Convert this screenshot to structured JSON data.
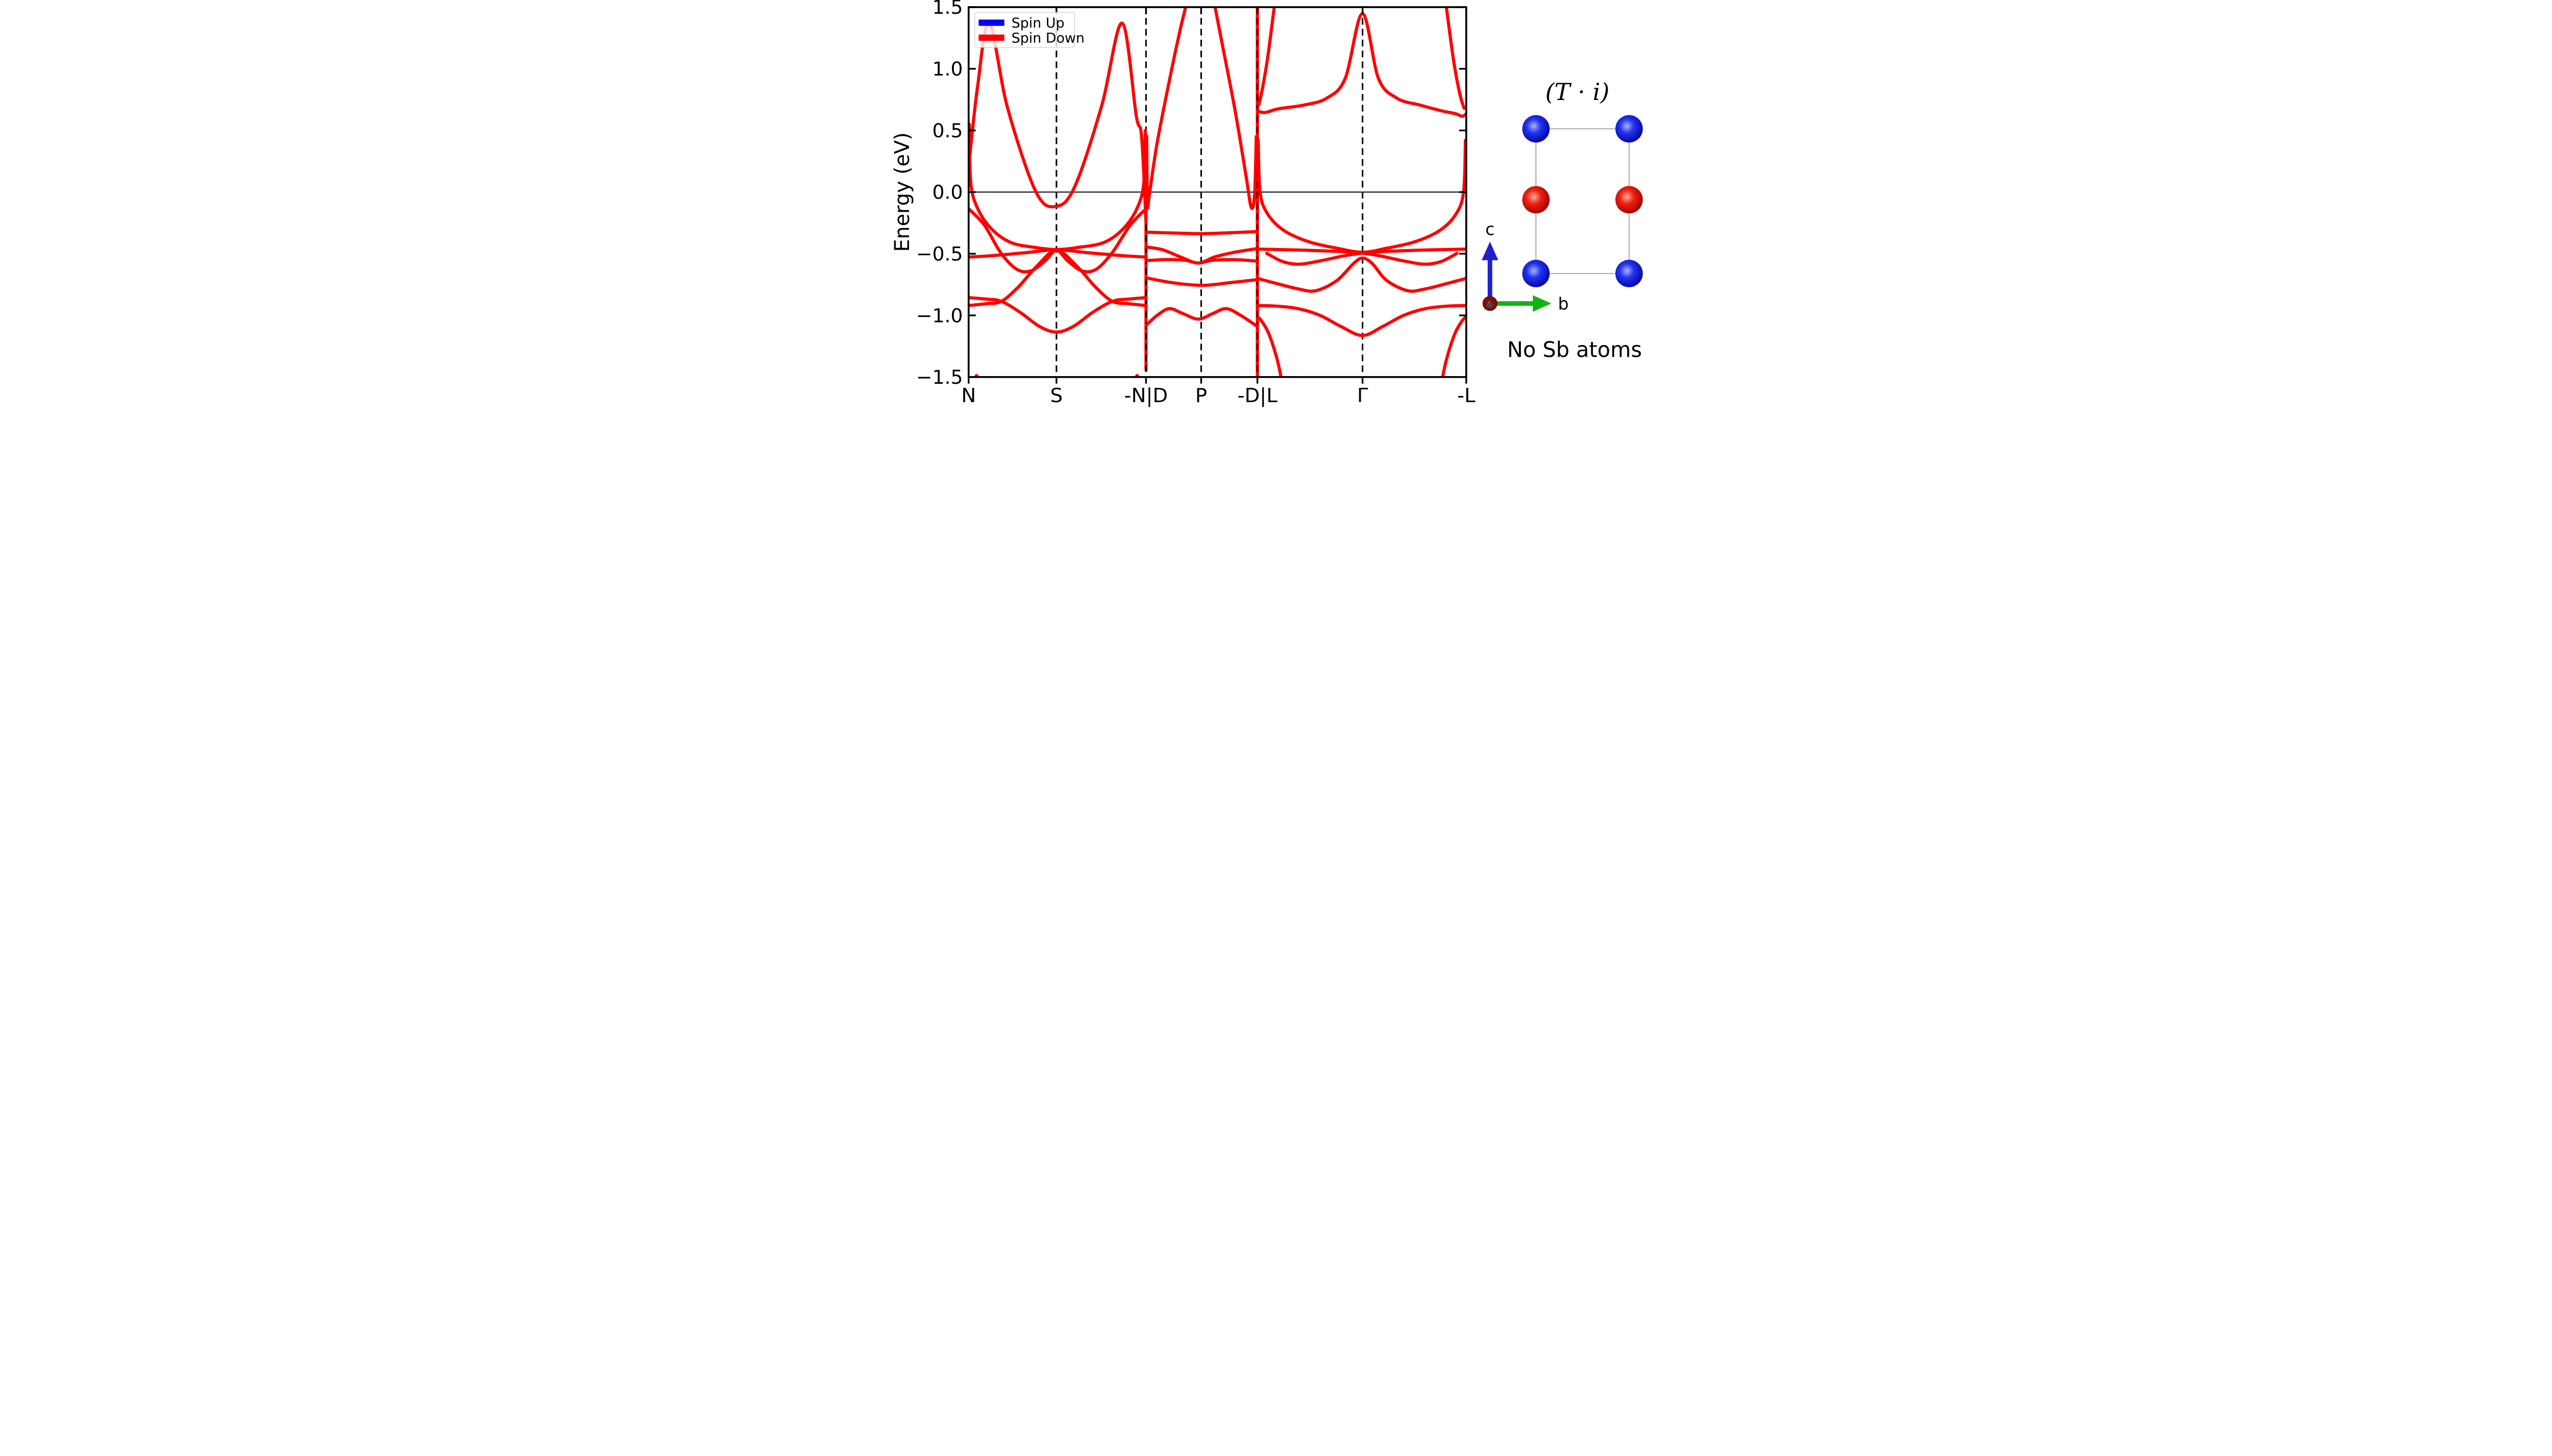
{
  "chart_data": {
    "type": "line",
    "title": "",
    "xlabel": "",
    "ylabel": "Energy (eV)",
    "ylim": [
      -1.5,
      1.5
    ],
    "fermi_energy": 0.0,
    "grid": "off",
    "band_color": "#ff0000",
    "legend": {
      "position": "upper-left",
      "entries": [
        {
          "label": "Spin Up",
          "color": "#0000ff"
        },
        {
          "label": "Spin Down",
          "color": "#ff0000"
        }
      ]
    },
    "y_ticks": [
      {
        "value": 1.5,
        "label": "1.5"
      },
      {
        "value": 1.0,
        "label": "1.0"
      },
      {
        "value": 0.5,
        "label": "0.5"
      },
      {
        "value": 0.0,
        "label": "0.0"
      },
      {
        "value": -0.5,
        "label": "−0.5"
      },
      {
        "value": -1.0,
        "label": "−1.0"
      },
      {
        "value": -1.5,
        "label": "−1.5"
      }
    ],
    "x_ticks": [
      {
        "pos": 0.0,
        "label": "N"
      },
      {
        "pos": 0.1765,
        "label": "S"
      },
      {
        "pos": 0.3565,
        "label": "-N|D"
      },
      {
        "pos": 0.4673,
        "label": "P"
      },
      {
        "pos": 0.5803,
        "label": "-D|L"
      },
      {
        "pos": 0.7916,
        "label": "Γ"
      },
      {
        "pos": 1.0,
        "label": "-L"
      }
    ],
    "panel_dividers": [
      0.1765,
      0.3565,
      0.4673,
      0.5803,
      0.7916
    ],
    "discontinuities": [
      {
        "pos": 0.3565,
        "e_top": 0.47,
        "e_bottom": -1.45
      },
      {
        "pos": 0.5803,
        "e_top": 1.52,
        "e_bottom": -1.52
      }
    ],
    "panels": [
      {
        "k0": 0.0,
        "k1": 0.3565,
        "bands": [
          [
            [
              0,
              0.2
            ],
            [
              0.05,
              0.85
            ],
            [
              0.116,
              1.37
            ],
            [
              0.22,
              0.68
            ],
            [
              0.38,
              0.0
            ],
            [
              0.495,
              -0.115
            ],
            [
              0.6,
              0.05
            ],
            [
              0.75,
              0.7
            ],
            [
              0.865,
              1.37
            ],
            [
              0.945,
              0.62
            ],
            [
              0.975,
              0.45
            ],
            [
              1.0,
              -0.25
            ]
          ],
          [
            [
              0.004,
              0.55
            ],
            [
              0.012,
              0.08
            ],
            [
              0.05,
              -0.13
            ],
            [
              0.13,
              -0.3
            ],
            [
              0.24,
              -0.41
            ],
            [
              0.38,
              -0.45
            ],
            [
              0.495,
              -0.466
            ],
            [
              0.61,
              -0.45
            ],
            [
              0.76,
              -0.41
            ],
            [
              0.87,
              -0.3
            ],
            [
              0.95,
              -0.13
            ],
            [
              0.988,
              0.08
            ],
            [
              0.996,
              0.5
            ]
          ],
          [
            [
              0,
              -0.135
            ],
            [
              0.09,
              -0.27
            ],
            [
              0.18,
              -0.49
            ],
            [
              0.27,
              -0.625
            ],
            [
              0.35,
              -0.64
            ],
            [
              0.43,
              -0.56
            ],
            [
              0.495,
              -0.472
            ],
            [
              0.56,
              -0.56
            ],
            [
              0.64,
              -0.64
            ],
            [
              0.72,
              -0.625
            ],
            [
              0.81,
              -0.49
            ],
            [
              0.91,
              -0.27
            ],
            [
              1,
              -0.135
            ]
          ],
          [
            [
              0,
              -0.527
            ],
            [
              0.14,
              -0.515
            ],
            [
              0.33,
              -0.49
            ],
            [
              0.495,
              -0.468
            ],
            [
              0.66,
              -0.49
            ],
            [
              0.86,
              -0.515
            ],
            [
              1,
              -0.527
            ]
          ],
          [
            [
              0,
              -0.856
            ],
            [
              0.1,
              -0.868
            ],
            [
              0.185,
              -0.886
            ],
            [
              0.29,
              -0.975
            ],
            [
              0.4,
              -1.09
            ],
            [
              0.495,
              -1.135
            ],
            [
              0.59,
              -1.09
            ],
            [
              0.7,
              -0.975
            ],
            [
              0.81,
              -0.886
            ],
            [
              0.9,
              -0.868
            ],
            [
              1,
              -0.856
            ]
          ],
          [
            [
              0,
              -0.92
            ],
            [
              0.1,
              -0.905
            ],
            [
              0.185,
              -0.886
            ],
            [
              0.28,
              -0.77
            ],
            [
              0.385,
              -0.6
            ],
            [
              0.495,
              -0.472
            ],
            [
              0.61,
              -0.6
            ],
            [
              0.715,
              -0.77
            ],
            [
              0.81,
              -0.886
            ],
            [
              0.9,
              -0.905
            ],
            [
              1,
              -0.92
            ]
          ],
          [
            [
              0.03,
              -1.56
            ],
            [
              0.045,
              -1.488
            ],
            [
              0.06,
              -1.56
            ]
          ],
          [
            [
              0.935,
              -1.56
            ],
            [
              0.95,
              -1.488
            ],
            [
              0.965,
              -1.56
            ]
          ]
        ]
      },
      {
        "k0": 0.3565,
        "k1": 0.5803,
        "bands": [
          [
            [
              0.006,
              0.45
            ],
            [
              0.013,
              -0.095
            ],
            [
              0.03,
              -0.02
            ],
            [
              0.1,
              0.4
            ],
            [
              0.22,
              0.95
            ],
            [
              0.31,
              1.33
            ],
            [
              0.378,
              1.58
            ]
          ],
          [
            [
              0.603,
              1.58
            ],
            [
              0.68,
              1.22
            ],
            [
              0.8,
              0.66
            ],
            [
              0.9,
              0.12
            ],
            [
              0.945,
              -0.125
            ],
            [
              0.975,
              -0.02
            ],
            [
              0.99,
              0.45
            ]
          ],
          [
            [
              0,
              -0.325
            ],
            [
              0.25,
              -0.332
            ],
            [
              0.5,
              -0.337
            ],
            [
              0.75,
              -0.33
            ],
            [
              1,
              -0.32
            ]
          ],
          [
            [
              0,
              -0.445
            ],
            [
              0.15,
              -0.468
            ],
            [
              0.32,
              -0.53
            ],
            [
              0.47,
              -0.575
            ],
            [
              0.62,
              -0.525
            ],
            [
              0.8,
              -0.487
            ],
            [
              1,
              -0.458
            ]
          ],
          [
            [
              0,
              -0.556
            ],
            [
              0.18,
              -0.547
            ],
            [
              0.35,
              -0.553
            ],
            [
              0.47,
              -0.576
            ],
            [
              0.6,
              -0.553
            ],
            [
              0.8,
              -0.548
            ],
            [
              1,
              -0.56
            ]
          ],
          [
            [
              0,
              -0.695
            ],
            [
              0.2,
              -0.73
            ],
            [
              0.4,
              -0.752
            ],
            [
              0.55,
              -0.755
            ],
            [
              0.75,
              -0.735
            ],
            [
              1,
              -0.71
            ]
          ],
          [
            [
              0,
              -1.08
            ],
            [
              0.1,
              -1.0
            ],
            [
              0.21,
              -0.945
            ],
            [
              0.33,
              -0.985
            ],
            [
              0.47,
              -1.03
            ],
            [
              0.6,
              -0.985
            ],
            [
              0.72,
              -0.945
            ],
            [
              0.85,
              -1.0
            ],
            [
              1,
              -1.09
            ]
          ]
        ]
      },
      {
        "k0": 0.5803,
        "k1": 1.0,
        "bands": [
          [
            [
              0,
              0.66
            ],
            [
              0.035,
              0.645
            ],
            [
              0.1,
              0.675
            ],
            [
              0.22,
              0.705
            ],
            [
              0.33,
              0.76
            ],
            [
              0.42,
              0.92
            ],
            [
              0.503,
              1.447
            ],
            [
              0.58,
              0.92
            ],
            [
              0.67,
              0.76
            ],
            [
              0.78,
              0.705
            ],
            [
              0.88,
              0.66
            ],
            [
              0.95,
              0.635
            ],
            [
              0.98,
              0.615
            ],
            [
              1,
              0.635
            ]
          ],
          [
            [
              0.085,
              1.56
            ],
            [
              0.05,
              1.1
            ],
            [
              0.022,
              0.82
            ],
            [
              0.006,
              0.705
            ]
          ],
          [
            [
              0.9,
              1.56
            ],
            [
              0.94,
              1.06
            ],
            [
              0.97,
              0.79
            ],
            [
              0.99,
              0.68
            ]
          ],
          [
            [
              0,
              -0.462
            ],
            [
              0.2,
              -0.47
            ],
            [
              0.4,
              -0.482
            ],
            [
              0.503,
              -0.49
            ],
            [
              0.6,
              -0.482
            ],
            [
              0.8,
              -0.47
            ],
            [
              1,
              -0.462
            ]
          ],
          [
            [
              0.004,
              0.42
            ],
            [
              0.013,
              0.0
            ],
            [
              0.05,
              -0.18
            ],
            [
              0.13,
              -0.315
            ],
            [
              0.25,
              -0.405
            ],
            [
              0.38,
              -0.455
            ],
            [
              0.503,
              -0.488
            ],
            [
              0.62,
              -0.455
            ],
            [
              0.75,
              -0.405
            ],
            [
              0.87,
              -0.315
            ],
            [
              0.95,
              -0.18
            ],
            [
              0.987,
              0.0
            ],
            [
              0.996,
              0.42
            ]
          ],
          [
            [
              0.045,
              -0.497
            ],
            [
              0.12,
              -0.563
            ],
            [
              0.2,
              -0.585
            ],
            [
              0.3,
              -0.558
            ],
            [
              0.42,
              -0.515
            ],
            [
              0.503,
              -0.495
            ]
          ],
          [
            [
              0.503,
              -0.495
            ],
            [
              0.58,
              -0.515
            ],
            [
              0.7,
              -0.558
            ],
            [
              0.8,
              -0.585
            ],
            [
              0.88,
              -0.563
            ],
            [
              0.955,
              -0.497
            ]
          ],
          [
            [
              0,
              -0.7
            ],
            [
              0.1,
              -0.745
            ],
            [
              0.2,
              -0.787
            ],
            [
              0.28,
              -0.8
            ],
            [
              0.38,
              -0.718
            ],
            [
              0.46,
              -0.58
            ],
            [
              0.503,
              -0.535
            ],
            [
              0.55,
              -0.58
            ],
            [
              0.62,
              -0.718
            ],
            [
              0.72,
              -0.8
            ],
            [
              0.8,
              -0.787
            ],
            [
              0.9,
              -0.745
            ],
            [
              1,
              -0.7
            ]
          ],
          [
            [
              0,
              -0.92
            ],
            [
              0.1,
              -0.926
            ],
            [
              0.2,
              -0.947
            ],
            [
              0.3,
              -1.0
            ],
            [
              0.4,
              -1.09
            ],
            [
              0.503,
              -1.163
            ],
            [
              0.6,
              -1.09
            ],
            [
              0.7,
              -1.0
            ],
            [
              0.8,
              -0.947
            ],
            [
              0.9,
              -0.926
            ],
            [
              1,
              -0.92
            ]
          ],
          [
            [
              0.006,
              -1.02
            ],
            [
              0.02,
              -1.045
            ],
            [
              0.055,
              -1.15
            ],
            [
              0.095,
              -1.36
            ],
            [
              0.12,
              -1.56
            ]
          ],
          [
            [
              0.88,
              -1.56
            ],
            [
              0.905,
              -1.36
            ],
            [
              0.945,
              -1.15
            ],
            [
              0.98,
              -1.045
            ],
            [
              0.994,
              -1.02
            ]
          ]
        ]
      }
    ]
  },
  "structure_panel": {
    "title": "(T · i)",
    "caption": "No Sb atoms",
    "axis_labels": {
      "vertical": "c",
      "horizontal": "b",
      "origin": "a"
    },
    "atom_colors": {
      "blue": "#1122dd",
      "red": "#dd1111"
    },
    "atoms": [
      {
        "fx": 0,
        "fy": 0,
        "color": "blue"
      },
      {
        "fx": 1,
        "fy": 0,
        "color": "blue"
      },
      {
        "fx": 0,
        "fy": 0.49,
        "color": "red"
      },
      {
        "fx": 1,
        "fy": 0.49,
        "color": "red"
      },
      {
        "fx": 0,
        "fy": 1,
        "color": "blue"
      },
      {
        "fx": 1,
        "fy": 1,
        "color": "blue"
      }
    ]
  }
}
